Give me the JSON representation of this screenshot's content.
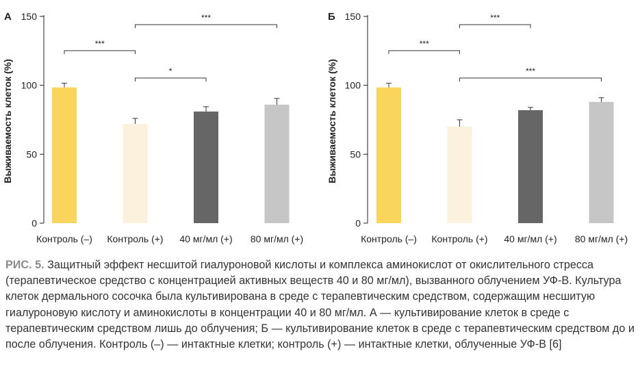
{
  "chart_data": [
    {
      "type": "bar",
      "panel": "А",
      "ylabel": "Выживаемость клеток (%)",
      "ylim": [
        0,
        150
      ],
      "yticks": [
        0,
        50,
        100,
        150
      ],
      "categories": [
        "Контроль (–)",
        "Контроль (+)",
        "40 мг/мл (+)",
        "80 мг/мл (+)"
      ],
      "values": [
        98.5,
        72,
        81,
        86
      ],
      "errors": [
        3,
        4,
        3.5,
        4.5
      ],
      "colors": [
        "#fad55c",
        "#fbf1dc",
        "#666666",
        "#c6c6c6"
      ],
      "significance": [
        {
          "from": 1,
          "to": 3,
          "level": 3,
          "label": "***"
        },
        {
          "from": 0,
          "to": 1,
          "level": 1,
          "label": "***"
        },
        {
          "from": 1,
          "to": 2,
          "level": 0,
          "label": "*"
        }
      ]
    },
    {
      "type": "bar",
      "panel": "Б",
      "ylabel": "Выживаемость клеток (%)",
      "ylim": [
        0,
        150
      ],
      "yticks": [
        0,
        50,
        100,
        150
      ],
      "categories": [
        "Контроль (–)",
        "Контроль (+)",
        "40 мг/мл (+)",
        "80 мг/мл (+)"
      ],
      "values": [
        98.5,
        70,
        82,
        88
      ],
      "errors": [
        3,
        5,
        2,
        3
      ],
      "colors": [
        "#fad55c",
        "#fbf1dc",
        "#666666",
        "#c6c6c6"
      ],
      "significance": [
        {
          "from": 1,
          "to": 2,
          "level": 3,
          "label": "***"
        },
        {
          "from": 0,
          "to": 1,
          "level": 1,
          "label": "***"
        },
        {
          "from": 1,
          "to": 3,
          "level": 0,
          "label": "***"
        }
      ]
    }
  ],
  "caption": {
    "lead": "РИС. 5.",
    "text": " Защитный эффект несшитой гиалуроновой кислоты и комплекса аминокислот от окислительного стресса (терапевтическое средство с концентрацией активных веществ 40 и 80 мг/мл), вызванного облучением УФ-В. Культура клеток дермального сосочка была культивирована в среде с терапевтическим средством, содержащим несшитую гиалуроновую кислоту и аминокислоты в концентрации 40 и 80 мг/мл. А — культивирование клеток в среде с терапевтическим средством лишь до облучения; Б — культивирование клеток в среде с терапевтическим средством до и после облучения. Контроль (–) — интактные клетки; контроль (+) — интактные клетки, облученные УФ-В [6]"
  }
}
